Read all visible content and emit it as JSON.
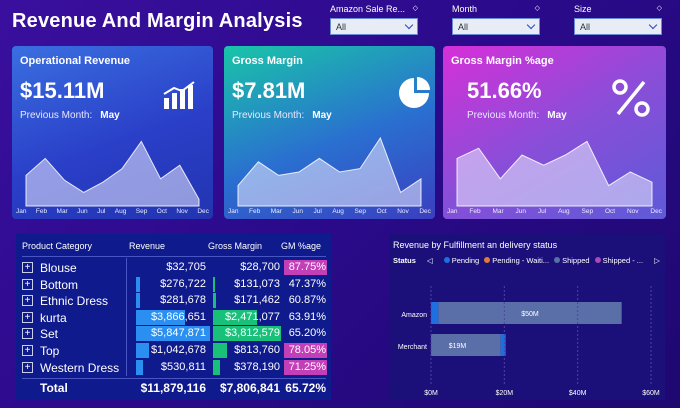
{
  "title": "Revenue And Margin Analysis",
  "filters": [
    {
      "label": "Amazon Sale Re...",
      "value": "All"
    },
    {
      "label": "Month",
      "value": "All"
    },
    {
      "label": "Size",
      "value": "All"
    }
  ],
  "months": [
    "Jan",
    "Feb",
    "Mar",
    "Jun",
    "Jul",
    "Aug",
    "Sep",
    "Oct",
    "Nov",
    "Dec"
  ],
  "kpis": [
    {
      "title": "Operational Revenue",
      "value": "$15.11M",
      "prev_label": "Previous Month:",
      "prev_value": "May",
      "icon": "bar-chart-icon"
    },
    {
      "title": "Gross Margin",
      "value": "$7.81M",
      "prev_label": "Previous Month:",
      "prev_value": "May",
      "icon": "pie-chart-icon"
    },
    {
      "title": "Gross Margin %age",
      "value": "51.66%",
      "prev_label": "Previous Month:",
      "prev_value": "May",
      "icon": "percent-icon"
    }
  ],
  "sparklines": [
    [
      0.45,
      0.7,
      0.38,
      0.2,
      0.35,
      0.55,
      0.95,
      0.4,
      0.6,
      0.1
    ],
    [
      0.3,
      0.65,
      0.45,
      0.5,
      0.7,
      0.5,
      0.55,
      1.0,
      0.2,
      0.4
    ],
    [
      0.7,
      0.85,
      0.4,
      0.75,
      0.6,
      0.75,
      0.95,
      0.3,
      0.5,
      0.35
    ]
  ],
  "table": {
    "headers": [
      "Product Category",
      "Revenue",
      "Gross Margin",
      "GM %age"
    ],
    "rows": [
      {
        "category": "Blouse",
        "revenue": "$32,705",
        "margin": "$28,700",
        "gm": "87.75%",
        "rev_frac": 0.0,
        "mar_frac": 0.0,
        "gm_hi": true
      },
      {
        "category": "Bottom",
        "revenue": "$276,722",
        "margin": "$131,073",
        "gm": "47.37%",
        "rev_frac": 0.05,
        "mar_frac": 0.03,
        "gm_hi": false
      },
      {
        "category": "Ethnic Dress",
        "revenue": "$281,678",
        "margin": "$171,462",
        "gm": "60.87%",
        "rev_frac": 0.05,
        "mar_frac": 0.05,
        "gm_hi": false
      },
      {
        "category": "kurta",
        "revenue": "$3,866,651",
        "margin": "$2,471,077",
        "gm": "63.91%",
        "rev_frac": 0.66,
        "mar_frac": 0.65,
        "gm_hi": false
      },
      {
        "category": "Set",
        "revenue": "$5,847,871",
        "margin": "$3,812,579",
        "gm": "65.20%",
        "rev_frac": 1.0,
        "mar_frac": 1.0,
        "gm_hi": false
      },
      {
        "category": "Top",
        "revenue": "$1,042,678",
        "margin": "$813,760",
        "gm": "78.05%",
        "rev_frac": 0.18,
        "mar_frac": 0.21,
        "gm_hi": true
      },
      {
        "category": "Western Dress",
        "revenue": "$530,811",
        "margin": "$378,190",
        "gm": "71.25%",
        "rev_frac": 0.09,
        "mar_frac": 0.1,
        "gm_hi": true
      }
    ],
    "total": {
      "label": "Total",
      "revenue": "$11,879,116",
      "margin": "$7,806,841",
      "gm": "65.72%"
    }
  },
  "chart_data": {
    "type": "bar",
    "title": "Revenue by Fulfillment an delivery status",
    "legend_title": "Status",
    "categories": [
      "Amazon",
      "Merchant"
    ],
    "series": [
      {
        "name": "Pending",
        "color": "#1e6fe0",
        "values": [
          2,
          0
        ]
      },
      {
        "name": "Pending - Waiti...",
        "color": "#e07a3a",
        "values": [
          0,
          0
        ]
      },
      {
        "name": "Shipped",
        "color": "#5a6fa8",
        "values": [
          50,
          19
        ]
      },
      {
        "name": "Shipped - ...",
        "color": "#a84ab8",
        "values": [
          0,
          0
        ]
      }
    ],
    "segment_labels": [
      "$50M",
      "$19M"
    ],
    "x_ticks": [
      "$0M",
      "$20M",
      "$40M",
      "$60M"
    ],
    "xlim": [
      0,
      60
    ]
  }
}
